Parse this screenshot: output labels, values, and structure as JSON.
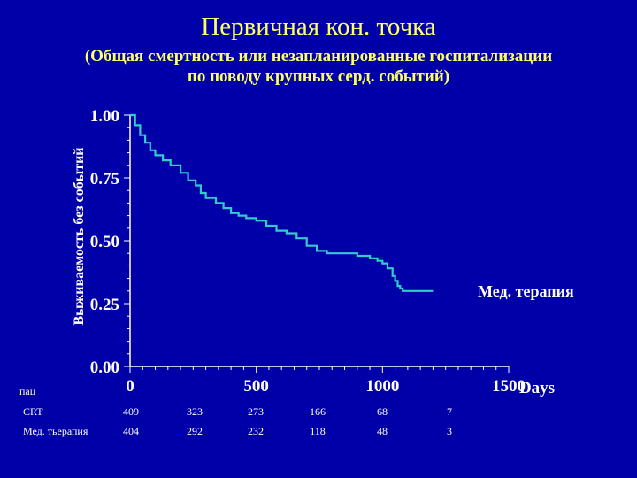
{
  "title": "Первичная кон. точка",
  "subtitle_line1": "(Общая смертность или незапланированные госпитализации",
  "subtitle_line2": "по поводу крупных серд. событий)",
  "chart_data": {
    "type": "line",
    "ylabel": "Выживаемость без событий",
    "xlabel": "Days",
    "xlim": [
      0,
      1500
    ],
    "ylim": [
      0,
      1
    ],
    "y_ticks": [
      "0.00",
      "0.25",
      "0.50",
      "0.75",
      "1.00"
    ],
    "x_ticks": [
      "0",
      "500",
      "1000",
      "1500"
    ],
    "series": [
      {
        "name": "Мед. терапия",
        "color": "#33cccc",
        "x": [
          0,
          20,
          40,
          60,
          80,
          100,
          130,
          160,
          200,
          230,
          260,
          280,
          300,
          340,
          370,
          400,
          430,
          460,
          500,
          540,
          580,
          620,
          660,
          700,
          740,
          780,
          800,
          850,
          900,
          950,
          980,
          1000,
          1020,
          1040,
          1050,
          1060,
          1070,
          1080,
          1200
        ],
        "y": [
          1.0,
          0.96,
          0.92,
          0.89,
          0.86,
          0.84,
          0.82,
          0.8,
          0.77,
          0.74,
          0.72,
          0.69,
          0.67,
          0.65,
          0.63,
          0.61,
          0.6,
          0.59,
          0.58,
          0.56,
          0.54,
          0.53,
          0.51,
          0.48,
          0.46,
          0.45,
          0.45,
          0.45,
          0.44,
          0.43,
          0.42,
          0.41,
          0.39,
          0.36,
          0.34,
          0.32,
          0.31,
          0.3,
          0.3
        ]
      }
    ]
  },
  "risk_table": {
    "header": "пац",
    "rows": [
      {
        "label": "CRT",
        "values": [
          "409",
          "323",
          "273",
          "166",
          "68",
          "7"
        ]
      },
      {
        "label": "Мед. тьерапия",
        "values": [
          "404",
          "292",
          "232",
          "118",
          "48",
          "3"
        ]
      }
    ]
  }
}
